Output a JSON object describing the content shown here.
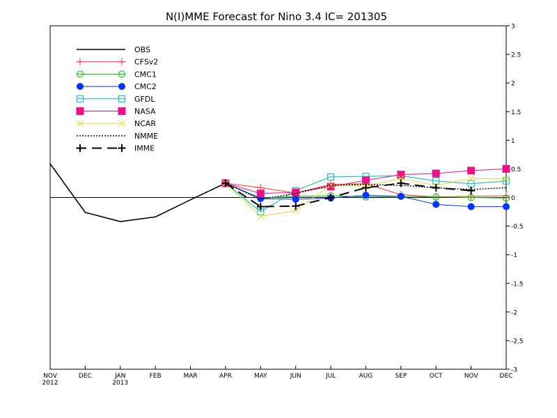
{
  "chart_data": {
    "type": "line",
    "title": "N(I)MME Forecast for Nino 3.4   IC= 201305",
    "x_tick_labels": [
      {
        "month": "NOV",
        "year": "2012"
      },
      {
        "month": "DEC",
        "year": ""
      },
      {
        "month": "JAN",
        "year": "2013"
      },
      {
        "month": "FEB",
        "year": ""
      },
      {
        "month": "MAR",
        "year": ""
      },
      {
        "month": "APR",
        "year": ""
      },
      {
        "month": "MAY",
        "year": ""
      },
      {
        "month": "JUN",
        "year": ""
      },
      {
        "month": "JUL",
        "year": ""
      },
      {
        "month": "AUG",
        "year": ""
      },
      {
        "month": "SEP",
        "year": ""
      },
      {
        "month": "OCT",
        "year": ""
      },
      {
        "month": "NOV",
        "year": ""
      },
      {
        "month": "DEC",
        "year": ""
      }
    ],
    "y_ticks": [
      "3",
      "2.5",
      "2",
      "1.5",
      "1",
      "0.5",
      "0",
      "-0.5",
      "-1",
      "-1.5",
      "-2",
      "-2.5",
      "-3"
    ],
    "ylim": [
      -3,
      3
    ],
    "y_axis_side": "right",
    "zero_line": true,
    "grid": false,
    "legend_position": "top-left",
    "series": [
      {
        "name": "OBS",
        "color": "#000000",
        "marker": "none",
        "dash": "solid",
        "start_index": 0,
        "values": [
          0.59,
          -0.26,
          -0.42,
          -0.34,
          -0.04,
          0.25
        ]
      },
      {
        "name": "CFSv2",
        "color": "#ff3333",
        "marker": "plus",
        "dash": "solid",
        "start_index": 5,
        "values": [
          0.25,
          0.17,
          0.08,
          0.23,
          0.24,
          0.05,
          0.01,
          0.02,
          0.03
        ]
      },
      {
        "name": "CMC1",
        "color": "#00bb00",
        "marker": "open-circle",
        "dash": "solid",
        "start_index": 5,
        "values": [
          0.25,
          -0.01,
          0.02,
          0.03,
          0.01,
          0.02,
          0.01,
          0.0,
          -0.01
        ]
      },
      {
        "name": "CMC2",
        "color": "#0033ff",
        "marker": "filled-circle",
        "dash": "solid",
        "start_index": 5,
        "values": [
          0.25,
          -0.02,
          -0.03,
          -0.01,
          0.04,
          0.02,
          -0.12,
          -0.16,
          -0.16
        ]
      },
      {
        "name": "GFDL",
        "color": "#00bbbb",
        "marker": "open-square",
        "dash": "solid",
        "start_index": 5,
        "values": [
          0.25,
          -0.25,
          0.12,
          0.36,
          0.37,
          0.38,
          0.29,
          0.24,
          0.29
        ]
      },
      {
        "name": "NASA",
        "color": "#ee1188",
        "marker": "filled-square",
        "dash": "solid",
        "start_index": 5,
        "values": [
          0.25,
          0.07,
          0.09,
          0.19,
          0.3,
          0.4,
          0.42,
          0.47,
          0.5
        ]
      },
      {
        "name": "NCAR",
        "color": "#dddd33",
        "marker": "x",
        "dash": "solid",
        "start_index": 5,
        "values": [
          0.25,
          -0.33,
          -0.23,
          0.22,
          0.2,
          0.33,
          0.21,
          0.33,
          0.33
        ]
      },
      {
        "name": "NMME",
        "color": "#000000",
        "marker": "none",
        "dash": "dotted",
        "start_index": 5,
        "values": [
          0.25,
          -0.03,
          0.07,
          0.21,
          0.23,
          0.21,
          0.17,
          0.14,
          0.17
        ]
      },
      {
        "name": "IMME",
        "color": "#000000",
        "marker": "bold-plus",
        "dash": "dashed",
        "start_index": 5,
        "values": [
          0.25,
          -0.16,
          -0.15,
          0.0,
          0.17,
          0.25,
          0.17,
          0.12,
          null
        ]
      }
    ]
  }
}
